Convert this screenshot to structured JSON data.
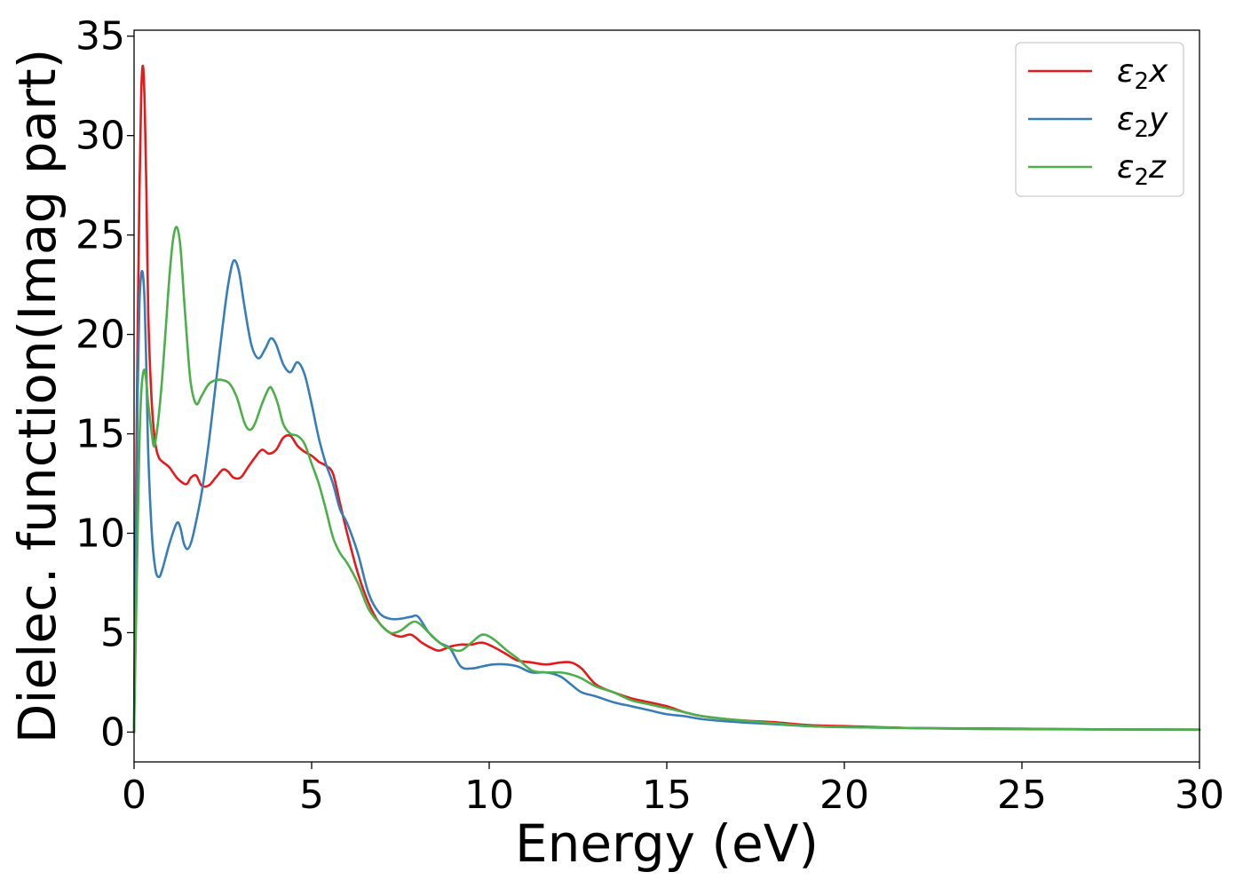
{
  "chart_data": {
    "type": "line",
    "title": "",
    "xlabel": "Energy (eV)",
    "ylabel": "Dielec. function(Imag part)",
    "xlim": [
      0,
      30
    ],
    "ylim": [
      -1.5,
      35.3
    ],
    "xticks": [
      0,
      5,
      10,
      15,
      20,
      25,
      30
    ],
    "yticks": [
      0,
      5,
      10,
      15,
      20,
      25,
      30,
      35
    ],
    "xtick_labels": [
      "0",
      "5",
      "10",
      "15",
      "20",
      "25",
      "30"
    ],
    "ytick_labels": [
      "0",
      "5",
      "10",
      "15",
      "20",
      "25",
      "30",
      "35"
    ],
    "grid": false,
    "legend": {
      "placement": "top-right"
    },
    "series": [
      {
        "name": "ε2x",
        "legend_main": "ε",
        "legend_sub": "2",
        "legend_var": "x",
        "color": "#e41a1c",
        "x": [
          0,
          0.05,
          0.1,
          0.15,
          0.2,
          0.25,
          0.3,
          0.35,
          0.4,
          0.5,
          0.6,
          0.7,
          0.8,
          1.0,
          1.2,
          1.4,
          1.5,
          1.6,
          1.75,
          1.9,
          2.1,
          2.3,
          2.5,
          2.65,
          2.8,
          3.0,
          3.2,
          3.4,
          3.6,
          3.8,
          4.0,
          4.2,
          4.4,
          4.6,
          4.8,
          5.0,
          5.2,
          5.4,
          5.6,
          5.8,
          6.0,
          6.3,
          6.6,
          6.9,
          7.2,
          7.5,
          7.8,
          8.1,
          8.4,
          8.6,
          8.9,
          9.2,
          9.5,
          9.8,
          10.1,
          10.5,
          10.8,
          11.2,
          11.6,
          12.0,
          12.3,
          12.6,
          13.0,
          13.5,
          14.0,
          14.5,
          15.0,
          15.5,
          16.0,
          17.0,
          18.0,
          19.0,
          20.0,
          22.0,
          24.0,
          26.0,
          28.0,
          30.0
        ],
        "y": [
          0.0,
          11.0,
          20.0,
          27.0,
          32.0,
          33.5,
          31.5,
          27.0,
          21.0,
          16.5,
          14.5,
          13.8,
          13.6,
          13.3,
          12.8,
          12.5,
          12.5,
          12.8,
          12.9,
          12.4,
          12.4,
          12.8,
          13.2,
          13.1,
          12.8,
          12.8,
          13.3,
          13.8,
          14.2,
          14.0,
          14.2,
          14.8,
          14.9,
          14.4,
          14.1,
          13.9,
          13.6,
          13.4,
          13.0,
          11.5,
          10.0,
          8.0,
          6.5,
          5.5,
          5.0,
          4.8,
          4.9,
          4.5,
          4.2,
          4.1,
          4.3,
          4.4,
          4.4,
          4.5,
          4.3,
          3.9,
          3.6,
          3.5,
          3.4,
          3.5,
          3.5,
          3.2,
          2.4,
          2.0,
          1.7,
          1.5,
          1.3,
          1.0,
          0.8,
          0.6,
          0.5,
          0.35,
          0.3,
          0.2,
          0.18,
          0.15,
          0.13,
          0.12
        ]
      },
      {
        "name": "ε2y",
        "legend_main": "ε",
        "legend_sub": "2",
        "legend_var": "y",
        "color": "#377eb8",
        "x": [
          0,
          0.05,
          0.1,
          0.15,
          0.2,
          0.25,
          0.3,
          0.35,
          0.4,
          0.5,
          0.6,
          0.7,
          0.8,
          1.0,
          1.2,
          1.3,
          1.4,
          1.5,
          1.6,
          1.7,
          1.9,
          2.1,
          2.3,
          2.5,
          2.65,
          2.8,
          2.95,
          3.1,
          3.3,
          3.5,
          3.7,
          3.85,
          4.0,
          4.2,
          4.4,
          4.6,
          4.8,
          5.0,
          5.2,
          5.4,
          5.6,
          5.8,
          6.0,
          6.3,
          6.6,
          6.9,
          7.2,
          7.5,
          7.8,
          8.0,
          8.3,
          8.6,
          8.9,
          9.2,
          9.5,
          9.8,
          10.1,
          10.5,
          10.8,
          11.2,
          11.6,
          12.0,
          12.3,
          12.6,
          13.0,
          13.5,
          14.0,
          14.5,
          15.0,
          15.5,
          16.0,
          17.0,
          18.0,
          19.0,
          20.0,
          22.0,
          24.0,
          26.0,
          28.0,
          30.0
        ],
        "y": [
          0.0,
          9.0,
          17.0,
          21.5,
          23.0,
          23.0,
          21.5,
          18.0,
          14.0,
          10.0,
          8.2,
          7.8,
          8.2,
          9.5,
          10.5,
          10.3,
          9.5,
          9.2,
          9.5,
          10.2,
          12.0,
          14.5,
          17.5,
          20.5,
          22.5,
          23.7,
          23.2,
          21.5,
          19.5,
          18.8,
          19.3,
          19.8,
          19.5,
          18.5,
          18.1,
          18.6,
          18.0,
          16.5,
          14.8,
          13.5,
          12.5,
          11.2,
          10.5,
          9.0,
          7.0,
          6.0,
          5.7,
          5.7,
          5.8,
          5.8,
          5.0,
          4.5,
          4.2,
          3.3,
          3.2,
          3.3,
          3.4,
          3.4,
          3.3,
          3.0,
          3.0,
          2.8,
          2.4,
          2.0,
          1.8,
          1.5,
          1.3,
          1.1,
          0.9,
          0.8,
          0.65,
          0.5,
          0.4,
          0.3,
          0.25,
          0.2,
          0.18,
          0.15,
          0.13,
          0.12
        ]
      },
      {
        "name": "ε2z",
        "legend_main": "ε",
        "legend_sub": "2",
        "legend_var": "z",
        "color": "#4daf4a",
        "x": [
          0,
          0.05,
          0.1,
          0.15,
          0.2,
          0.25,
          0.3,
          0.35,
          0.4,
          0.5,
          0.55,
          0.6,
          0.7,
          0.8,
          0.9,
          1.0,
          1.1,
          1.2,
          1.3,
          1.4,
          1.5,
          1.6,
          1.75,
          1.9,
          2.1,
          2.3,
          2.5,
          2.7,
          2.9,
          3.1,
          3.25,
          3.4,
          3.6,
          3.8,
          3.9,
          4.05,
          4.2,
          4.4,
          4.6,
          4.8,
          5.0,
          5.2,
          5.4,
          5.6,
          5.8,
          6.0,
          6.3,
          6.6,
          6.9,
          7.2,
          7.5,
          7.8,
          8.0,
          8.3,
          8.6,
          8.9,
          9.2,
          9.5,
          9.8,
          10.1,
          10.5,
          10.8,
          11.2,
          11.6,
          12.0,
          12.3,
          12.6,
          13.0,
          13.5,
          14.0,
          14.5,
          15.0,
          15.5,
          16.0,
          17.0,
          18.0,
          19.0,
          20.0,
          22.0,
          24.0,
          26.0,
          28.0,
          30.0
        ],
        "y": [
          0.0,
          5.0,
          10.0,
          14.5,
          17.0,
          18.0,
          18.2,
          17.5,
          16.5,
          15.0,
          14.4,
          14.6,
          16.0,
          18.0,
          20.5,
          23.0,
          24.8,
          25.4,
          24.5,
          22.0,
          19.5,
          17.5,
          16.5,
          16.9,
          17.5,
          17.7,
          17.7,
          17.5,
          16.8,
          15.6,
          15.2,
          15.5,
          16.5,
          17.3,
          17.2,
          16.5,
          15.5,
          15.0,
          14.9,
          14.5,
          13.5,
          12.5,
          11.2,
          9.8,
          9.0,
          8.5,
          7.5,
          6.2,
          5.5,
          5.0,
          5.1,
          5.5,
          5.5,
          5.0,
          4.5,
          4.2,
          4.1,
          4.5,
          4.9,
          4.7,
          4.1,
          3.7,
          3.1,
          3.0,
          3.0,
          2.9,
          2.7,
          2.3,
          2.0,
          1.6,
          1.4,
          1.2,
          1.0,
          0.8,
          0.6,
          0.45,
          0.3,
          0.25,
          0.2,
          0.15,
          0.14,
          0.13,
          0.12
        ]
      }
    ]
  }
}
